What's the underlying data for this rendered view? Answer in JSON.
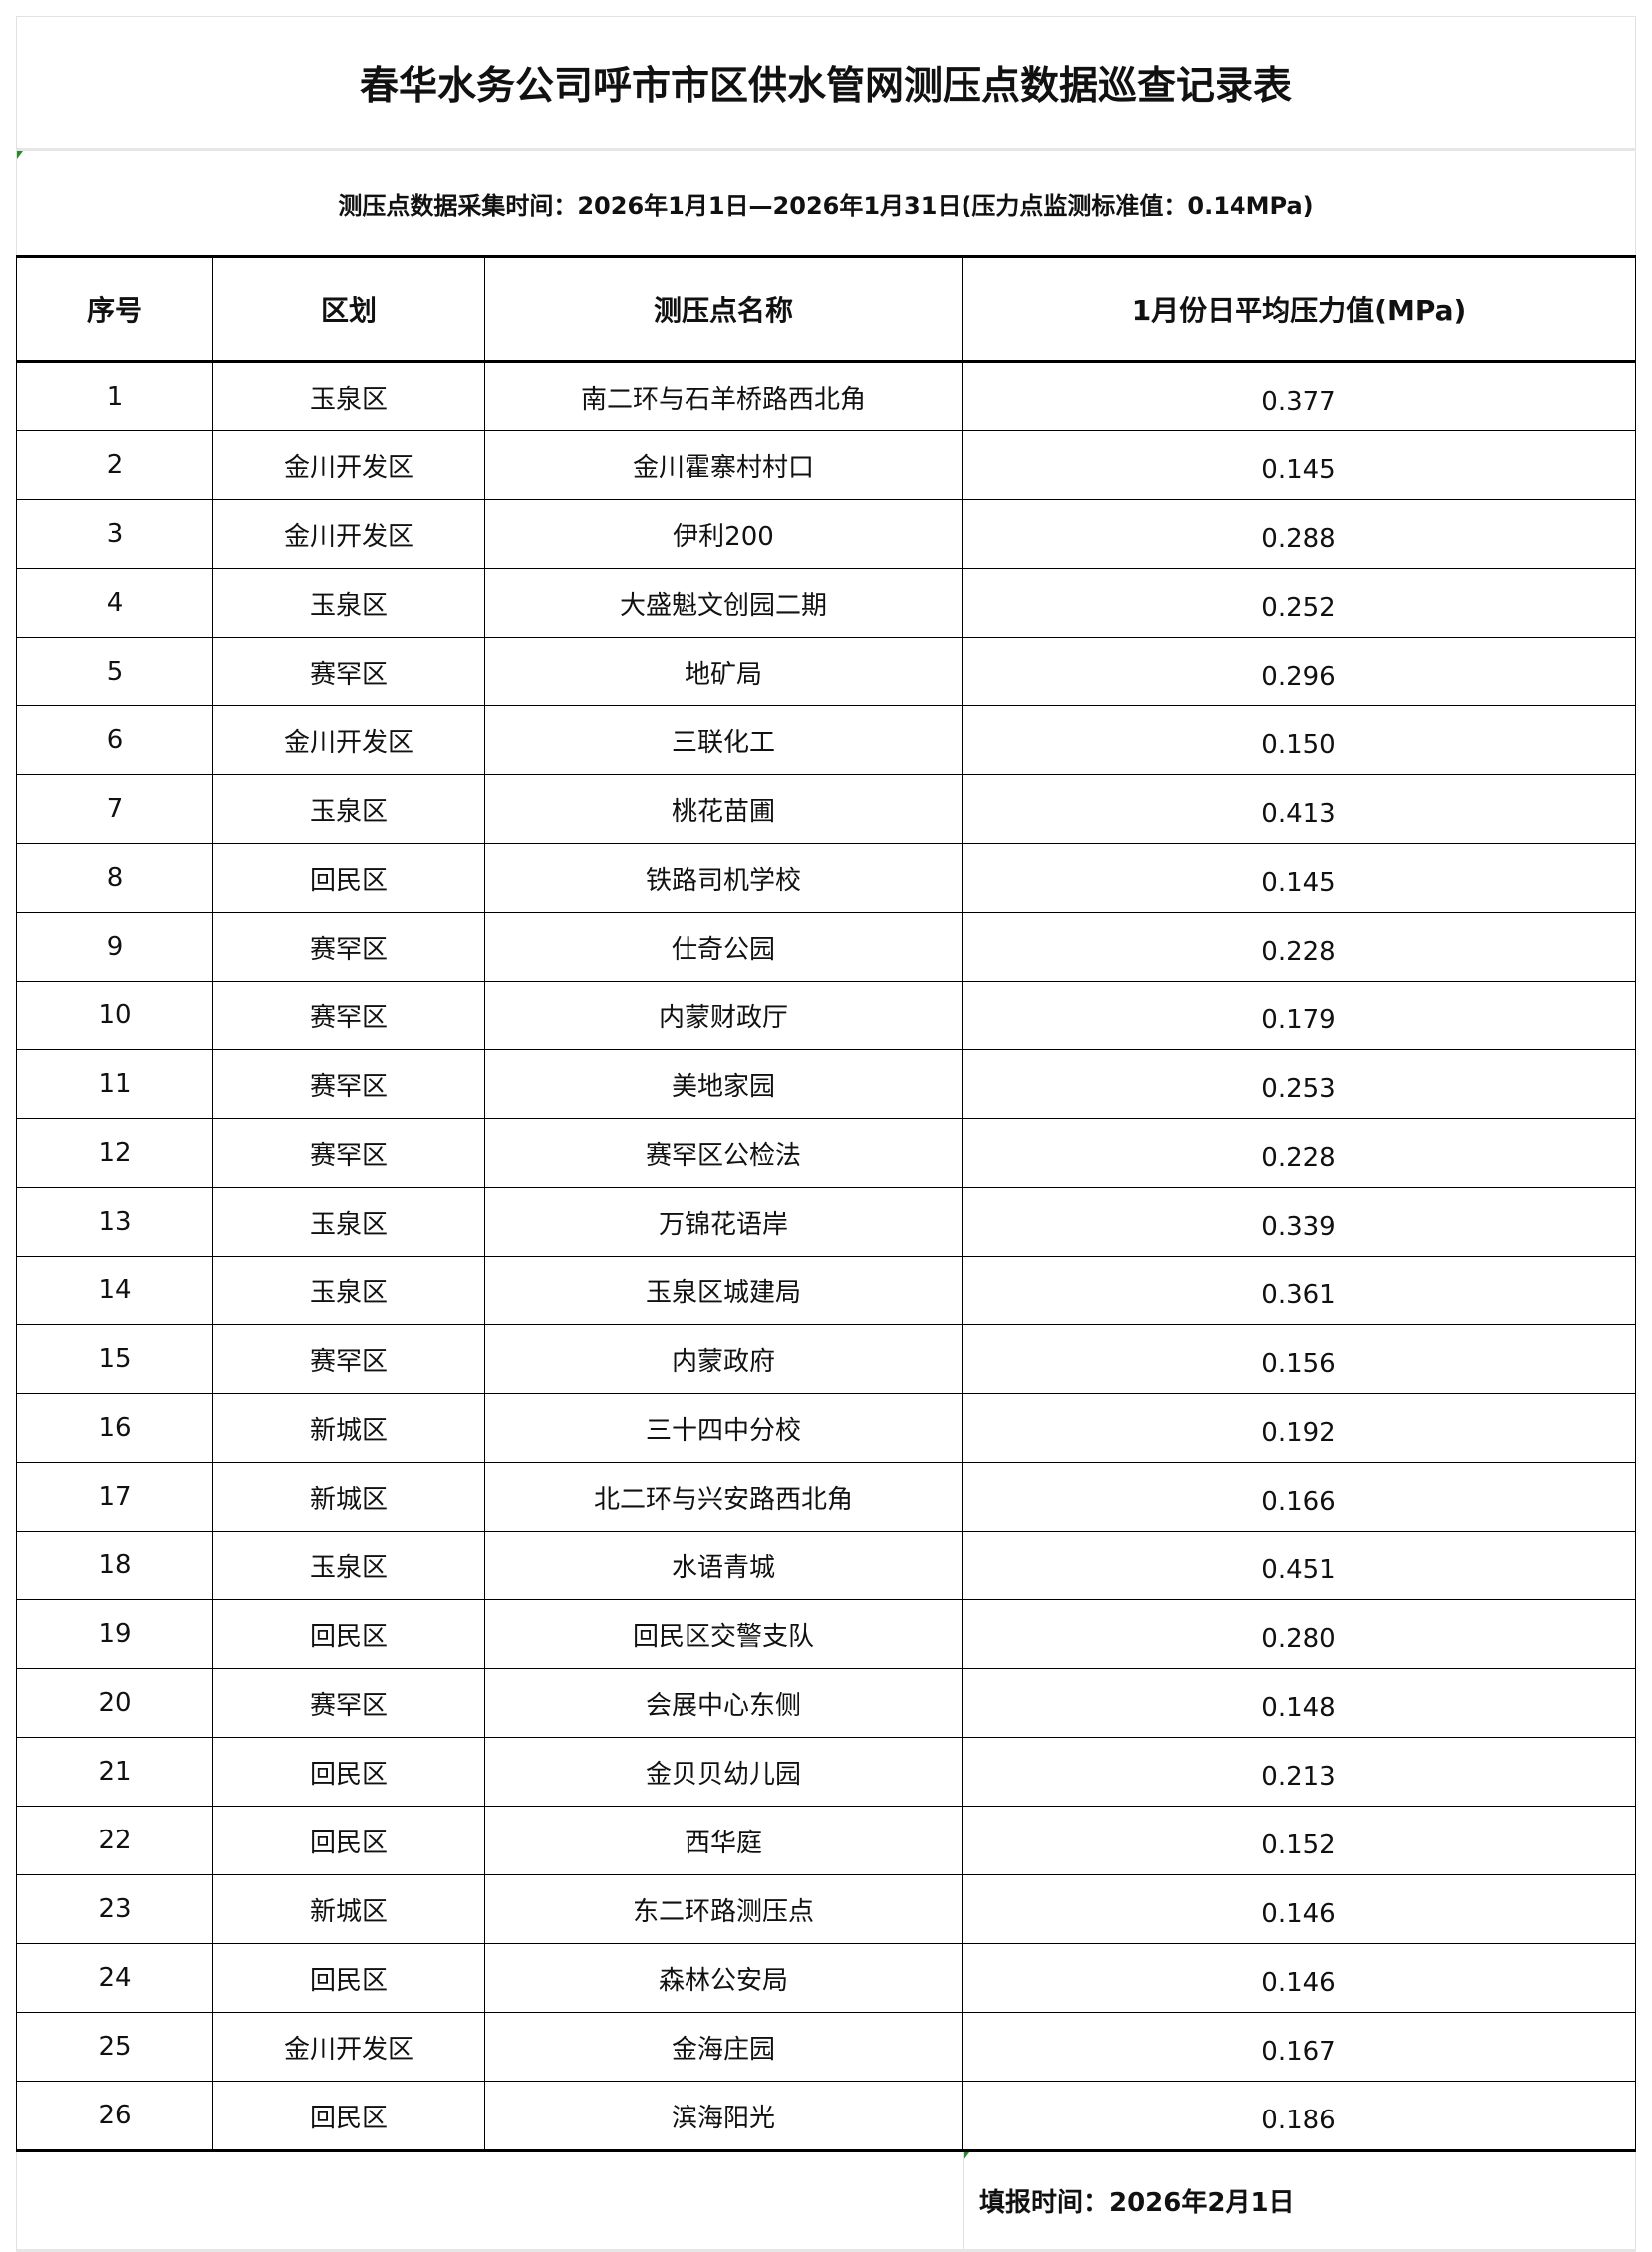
{
  "title": "春华水务公司呼市市区供水管网测压点数据巡查记录表",
  "subtitle": "测压点数据采集时间：2026年1月1日—2026年1月31日(压力点监测标准值：0.14MPa)",
  "columns": [
    "序号",
    "区划",
    "测压点名称",
    "1月份日平均压力值(MPa)"
  ],
  "rows": [
    [
      "1",
      "玉泉区",
      "南二环与石羊桥路西北角",
      "0.377"
    ],
    [
      "2",
      "金川开发区",
      "金川霍寨村村口",
      "0.145"
    ],
    [
      "3",
      "金川开发区",
      "伊利200",
      "0.288"
    ],
    [
      "4",
      "玉泉区",
      "大盛魁文创园二期",
      "0.252"
    ],
    [
      "5",
      "赛罕区",
      "地矿局",
      "0.296"
    ],
    [
      "6",
      "金川开发区",
      "三联化工",
      "0.150"
    ],
    [
      "7",
      "玉泉区",
      "桃花苗圃",
      "0.413"
    ],
    [
      "8",
      "回民区",
      "铁路司机学校",
      "0.145"
    ],
    [
      "9",
      "赛罕区",
      "仕奇公园",
      "0.228"
    ],
    [
      "10",
      "赛罕区",
      "内蒙财政厅",
      "0.179"
    ],
    [
      "11",
      "赛罕区",
      "美地家园",
      "0.253"
    ],
    [
      "12",
      "赛罕区",
      "赛罕区公检法",
      "0.228"
    ],
    [
      "13",
      "玉泉区",
      "万锦花语岸",
      "0.339"
    ],
    [
      "14",
      "玉泉区",
      "玉泉区城建局",
      "0.361"
    ],
    [
      "15",
      "赛罕区",
      "内蒙政府",
      "0.156"
    ],
    [
      "16",
      "新城区",
      "三十四中分校",
      "0.192"
    ],
    [
      "17",
      "新城区",
      "北二环与兴安路西北角",
      "0.166"
    ],
    [
      "18",
      "玉泉区",
      "水语青城",
      "0.451"
    ],
    [
      "19",
      "回民区",
      "回民区交警支队",
      "0.280"
    ],
    [
      "20",
      "赛罕区",
      "会展中心东侧",
      "0.148"
    ],
    [
      "21",
      "回民区",
      "金贝贝幼儿园",
      "0.213"
    ],
    [
      "22",
      "回民区",
      "西华庭",
      "0.152"
    ],
    [
      "23",
      "新城区",
      "东二环路测压点",
      "0.146"
    ],
    [
      "24",
      "回民区",
      "森林公安局",
      "0.146"
    ],
    [
      "25",
      "金川开发区",
      "金海庄园",
      "0.167"
    ],
    [
      "26",
      "回民区",
      "滨海阳光",
      "0.186"
    ]
  ],
  "footer": "填报时间：2026年2月1日"
}
